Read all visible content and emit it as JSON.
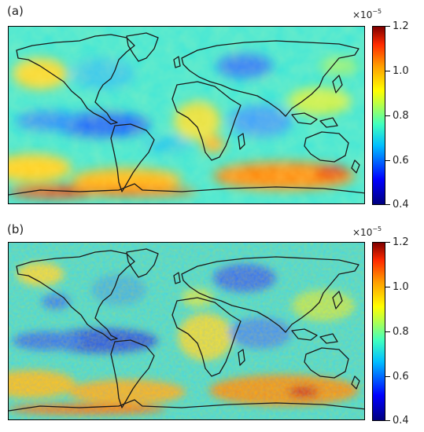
{
  "panels": [
    {
      "label": "(a)",
      "colorbar": {
        "multiplier": "×10",
        "exponent": "−5",
        "ticks": [
          "1.2",
          "1.0",
          "0.8",
          "0.6",
          "0.4"
        ],
        "range": [
          0.4,
          1.2
        ]
      }
    },
    {
      "label": "(b)",
      "colorbar": {
        "multiplier": "×10",
        "exponent": "−5",
        "ticks": [
          "1.2",
          "1.0",
          "0.8",
          "0.6",
          "0.4"
        ],
        "range": [
          0.4,
          1.2
        ]
      }
    }
  ],
  "colormap": "jet",
  "projection": "equirectangular world map with coastlines",
  "colors": {
    "coastline": "#1a1a1a",
    "field_dominant": "#40e8d0",
    "high_antarctic": "#ff4000",
    "low_tropics": "#1e5aff"
  }
}
